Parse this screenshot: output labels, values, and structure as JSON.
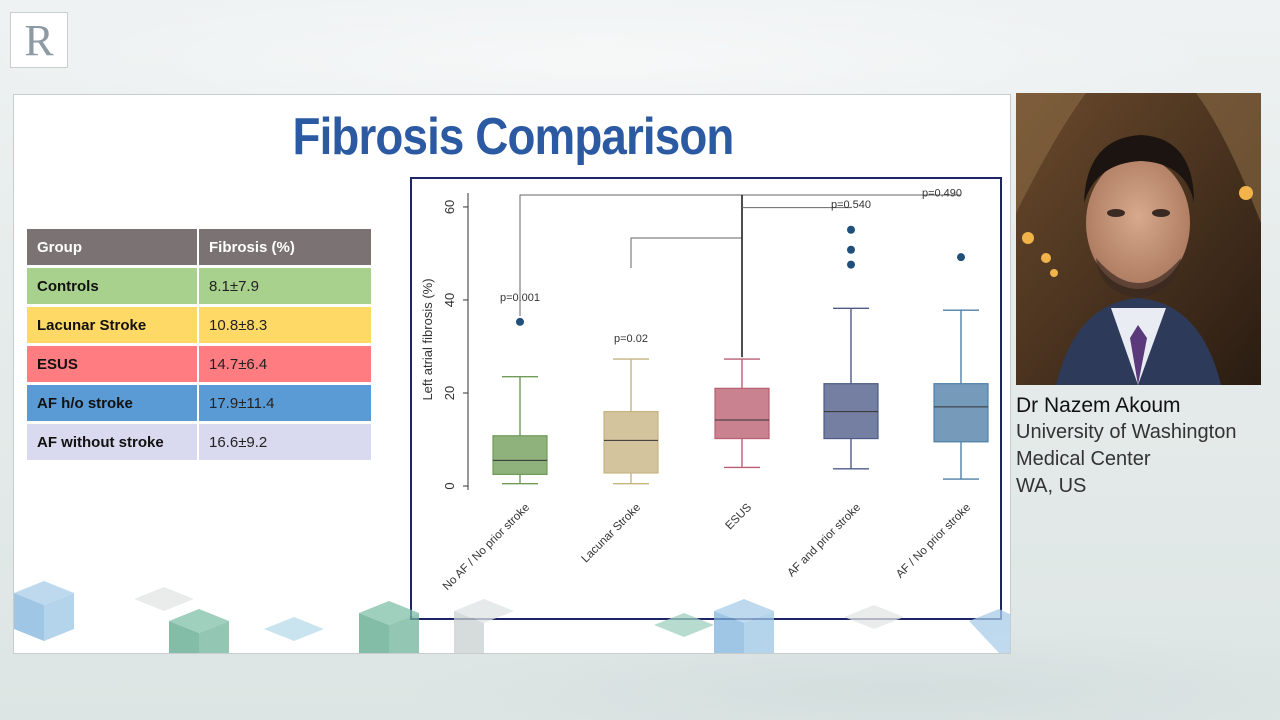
{
  "slide": {
    "title": "Fibrosis Comparison",
    "table": {
      "headers": [
        "Group",
        "Fibrosis (%)"
      ],
      "rows": [
        {
          "group": "Controls",
          "value": "8.1±7.9",
          "color": "#a9d18e"
        },
        {
          "group": "Lacunar Stroke",
          "value": "10.8±8.3",
          "color": "#ffd966"
        },
        {
          "group": "ESUS",
          "value": "14.7±6.4",
          "color": "#ff7c80"
        },
        {
          "group": "AF h/o stroke",
          "value": "17.9±11.4",
          "color": "#5b9bd5"
        },
        {
          "group": "AF without stroke",
          "value": "16.6±9.2",
          "color": "#d9d9ef"
        }
      ],
      "header_color": "#7b7373"
    }
  },
  "chart_data": {
    "type": "boxplot",
    "ylabel": "Left atrial fibrosis (%)",
    "ylim": [
      0,
      63
    ],
    "yticks": [
      "0",
      "20",
      "40",
      "60"
    ],
    "categories": [
      "No AF / No prior stroke",
      "Lacunar Stroke",
      "ESUS",
      "AF and prior stroke",
      "AF / No prior stroke"
    ],
    "series": [
      {
        "min": 0.5,
        "q1": 2.5,
        "median": 5.5,
        "q3": 10.8,
        "max": 23.5,
        "outliers": [
          35.3
        ],
        "color": "#6f9b57"
      },
      {
        "min": 0.5,
        "q1": 2.8,
        "median": 9.8,
        "q3": 16,
        "max": 27.3,
        "outliers": [],
        "color": "#c7b483"
      },
      {
        "min": 4,
        "q1": 10.2,
        "median": 14.2,
        "q3": 21,
        "max": 27.3,
        "outliers": [],
        "color": "#b85f71"
      },
      {
        "min": 3.7,
        "q1": 10.2,
        "median": 16,
        "q3": 22,
        "max": 38.2,
        "outliers": [
          47.6,
          50.8,
          55.1
        ],
        "color": "#4e5b86"
      },
      {
        "min": 1.5,
        "q1": 9.5,
        "median": 17,
        "q3": 22,
        "max": 37.8,
        "outliers": [
          49.2
        ],
        "color": "#4f7fa7"
      }
    ],
    "annotations": [
      "p=0.001",
      "p=0.02",
      "p=0.540",
      "p=0.490"
    ]
  },
  "speaker": {
    "name": "Dr Nazem Akoum",
    "lines": [
      "University of Washington",
      "Medical Center",
      "WA, US"
    ]
  },
  "brand": {
    "logo_letter": "R"
  }
}
